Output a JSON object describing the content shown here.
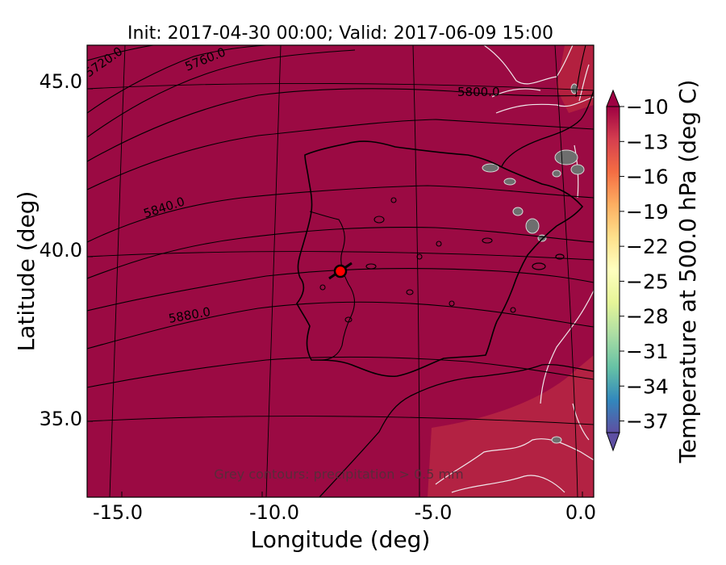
{
  "title": "Init: 2017-04-30 00:00; Valid: 2017-06-09 15:00",
  "xlabel": "Longitude (deg)",
  "ylabel": "Latitude (deg)",
  "x_ticks": [
    "-15.0",
    "-10.0",
    "-5.0",
    "0.0"
  ],
  "y_ticks": [
    "45.0",
    "40.0",
    "35.0"
  ],
  "colorbar": {
    "label": "Temperature at 500.0 hPa (deg C)",
    "ticks": [
      "−10",
      "−13",
      "−16",
      "−19",
      "−22",
      "−25",
      "−28",
      "−31",
      "−34",
      "−37"
    ],
    "range": [
      -38,
      -10
    ]
  },
  "annotation": "Grey contours: precipitation > 0.5 mm",
  "contour_labels": [
    "5720.0",
    "5760.0",
    "5800.0",
    "5840.0",
    "5880.0"
  ],
  "colors": {
    "field": "#9b0a43",
    "field_light": "#b5203f",
    "coast": "#000000",
    "white_contour": "#f0e6ea",
    "marker_fill": "#ff0000"
  },
  "chart_data": {
    "type": "map",
    "region": "Iberian Peninsula",
    "xlim": [
      -16,
      0.3
    ],
    "ylim": [
      32.8,
      46
    ],
    "field": {
      "variable": "Temperature at 500.0 hPa",
      "units": "deg C",
      "approx_value": -10
    },
    "geopotential_contours": [
      5720,
      5760,
      5800,
      5840,
      5880
    ],
    "marker": {
      "lon": -7.7,
      "lat": 39.4
    }
  }
}
